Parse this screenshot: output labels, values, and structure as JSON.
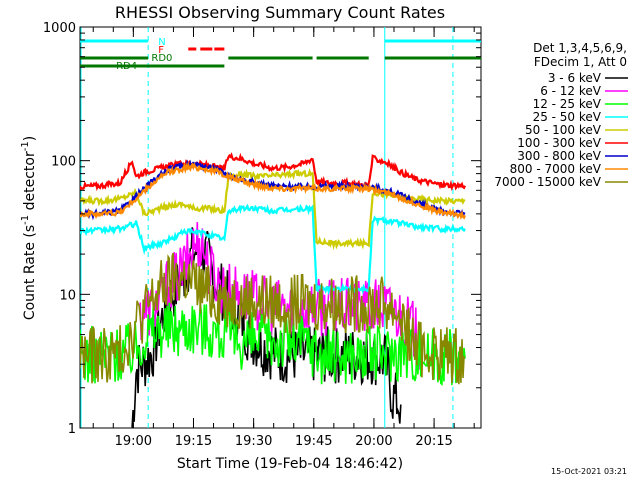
{
  "chart_data": {
    "type": "line",
    "title": "RHESSI Observing Summary Count Rates",
    "xlabel": "Start Time (19-Feb-04 18:46:42)",
    "ylabel_main": "Count Rate (s",
    "ylabel_sup": "-1",
    "ylabel_mid": " detector",
    "ylabel_end": ")",
    "y_scale": "log",
    "ylim": [
      1,
      1000
    ],
    "xlim_minutes": [
      0,
      100
    ],
    "ytick_labels": [
      {
        "label": "1",
        "value": 1
      },
      {
        "label": "10",
        "value": 10
      },
      {
        "label": "100",
        "value": 100
      },
      {
        "label": "1000",
        "value": 1000
      }
    ],
    "xtick_labels": [
      {
        "label": "19:00",
        "minute": 13.3
      },
      {
        "label": "19:15",
        "minute": 28.3
      },
      {
        "label": "19:30",
        "minute": 43.3
      },
      {
        "label": "19:45",
        "minute": 58.3
      },
      {
        "label": "20:00",
        "minute": 73.3
      },
      {
        "label": "20:15",
        "minute": 88.3
      }
    ],
    "legend_header": [
      "Det 1,3,4,5,6,9,",
      "FDecim 1, Att 0"
    ],
    "legend_position": "right",
    "series": [
      {
        "name": "3 - 6 keV",
        "color": "#000000",
        "points": [
          [
            13,
            1
          ],
          [
            14,
            2.7
          ],
          [
            16,
            3.1
          ],
          [
            18,
            3.6
          ],
          [
            20,
            6
          ],
          [
            22,
            9
          ],
          [
            24,
            11
          ],
          [
            26,
            14
          ],
          [
            28,
            20
          ],
          [
            30,
            22
          ],
          [
            32,
            18
          ],
          [
            34,
            12
          ],
          [
            36,
            10
          ],
          [
            38,
            8
          ],
          [
            40,
            7
          ],
          [
            42,
            5
          ],
          [
            44,
            4.5
          ],
          [
            46,
            4
          ],
          [
            50,
            3.5
          ],
          [
            56,
            3.5
          ],
          [
            60,
            3.5
          ],
          [
            66,
            3.5
          ],
          [
            70,
            3.5
          ],
          [
            76,
            3.3
          ],
          [
            78,
            1.7
          ],
          [
            80,
            1.5
          ]
        ]
      },
      {
        "name": "6 - 12 keV",
        "color": "#ff00ff",
        "points": [
          [
            15,
            7
          ],
          [
            18,
            8
          ],
          [
            20,
            9
          ],
          [
            22,
            12
          ],
          [
            24,
            13
          ],
          [
            26,
            16
          ],
          [
            28,
            22
          ],
          [
            30,
            26
          ],
          [
            31,
            22
          ],
          [
            32,
            16
          ],
          [
            34,
            13
          ],
          [
            36,
            11
          ],
          [
            40,
            10
          ],
          [
            44,
            9
          ],
          [
            48,
            8
          ],
          [
            56,
            8
          ],
          [
            58,
            8
          ],
          [
            62,
            8
          ],
          [
            66,
            8
          ],
          [
            70,
            8
          ],
          [
            74,
            8
          ],
          [
            76,
            8
          ],
          [
            80,
            7
          ],
          [
            83,
            5.5
          ],
          [
            85,
            4
          ]
        ]
      },
      {
        "name": "12 - 25 keV",
        "color": "#00ff00",
        "points": [
          [
            0,
            3.5
          ],
          [
            5,
            3.5
          ],
          [
            10,
            3.6
          ],
          [
            14,
            4
          ],
          [
            16,
            5
          ],
          [
            20,
            5.5
          ],
          [
            24,
            5.5
          ],
          [
            28,
            6
          ],
          [
            32,
            5.5
          ],
          [
            36,
            5
          ],
          [
            40,
            4.5
          ],
          [
            44,
            4.5
          ],
          [
            48,
            4.5
          ],
          [
            52,
            4.5
          ],
          [
            56,
            4.5
          ],
          [
            60,
            3.5
          ],
          [
            64,
            3.5
          ],
          [
            70,
            3.5
          ],
          [
            76,
            3.6
          ],
          [
            80,
            3.8
          ],
          [
            86,
            3.5
          ],
          [
            92,
            3.5
          ],
          [
            96,
            3.3
          ]
        ]
      },
      {
        "name": "25 - 50 keV",
        "color": "#00ffff",
        "points": [
          [
            0,
            30
          ],
          [
            5,
            30
          ],
          [
            10,
            31
          ],
          [
            14,
            34
          ],
          [
            16,
            22
          ],
          [
            20,
            24
          ],
          [
            24,
            27
          ],
          [
            26,
            30
          ],
          [
            28,
            29
          ],
          [
            30,
            29
          ],
          [
            32,
            28
          ],
          [
            36,
            26
          ],
          [
            37,
            42
          ],
          [
            40,
            44
          ],
          [
            44,
            44
          ],
          [
            48,
            42
          ],
          [
            52,
            43
          ],
          [
            58,
            44
          ],
          [
            59,
            11
          ],
          [
            64,
            11
          ],
          [
            72,
            11
          ],
          [
            73,
            36
          ],
          [
            76,
            36
          ],
          [
            80,
            34
          ],
          [
            84,
            32
          ],
          [
            90,
            31
          ],
          [
            96,
            31
          ]
        ]
      },
      {
        "name": "50 - 100 keV",
        "color": "#cccc00",
        "points": [
          [
            0,
            50
          ],
          [
            5,
            50
          ],
          [
            10,
            52
          ],
          [
            14,
            58
          ],
          [
            16,
            40
          ],
          [
            20,
            44
          ],
          [
            24,
            47
          ],
          [
            26,
            47
          ],
          [
            28,
            44
          ],
          [
            32,
            44
          ],
          [
            36,
            42
          ],
          [
            37,
            75
          ],
          [
            40,
            80
          ],
          [
            44,
            76
          ],
          [
            50,
            78
          ],
          [
            54,
            80
          ],
          [
            58,
            80
          ],
          [
            59,
            25
          ],
          [
            64,
            24
          ],
          [
            72,
            24
          ],
          [
            73,
            58
          ],
          [
            76,
            56
          ],
          [
            80,
            53
          ],
          [
            84,
            52
          ],
          [
            90,
            50
          ],
          [
            96,
            50
          ]
        ]
      },
      {
        "name": "100 - 300 keV",
        "color": "#ff0000",
        "points": [
          [
            0,
            64
          ],
          [
            5,
            65
          ],
          [
            10,
            68
          ],
          [
            13,
            100
          ],
          [
            14,
            76
          ],
          [
            16,
            82
          ],
          [
            20,
            88
          ],
          [
            24,
            94
          ],
          [
            28,
            96
          ],
          [
            32,
            92
          ],
          [
            36,
            86
          ],
          [
            37,
            108
          ],
          [
            40,
            104
          ],
          [
            44,
            94
          ],
          [
            48,
            88
          ],
          [
            52,
            90
          ],
          [
            56,
            96
          ],
          [
            58,
            104
          ],
          [
            59,
            70
          ],
          [
            62,
            68
          ],
          [
            66,
            68
          ],
          [
            70,
            66
          ],
          [
            72,
            66
          ],
          [
            73,
            104
          ],
          [
            76,
            98
          ],
          [
            80,
            82
          ],
          [
            84,
            72
          ],
          [
            90,
            66
          ],
          [
            96,
            65
          ]
        ]
      },
      {
        "name": "300 - 800 keV",
        "color": "#0000cc",
        "points": [
          [
            0,
            40
          ],
          [
            5,
            40
          ],
          [
            10,
            42
          ],
          [
            14,
            54
          ],
          [
            18,
            70
          ],
          [
            22,
            86
          ],
          [
            26,
            92
          ],
          [
            28,
            94
          ],
          [
            30,
            92
          ],
          [
            34,
            86
          ],
          [
            38,
            76
          ],
          [
            42,
            70
          ],
          [
            46,
            66
          ],
          [
            50,
            64
          ],
          [
            54,
            64
          ],
          [
            58,
            64
          ],
          [
            62,
            64
          ],
          [
            66,
            64
          ],
          [
            70,
            64
          ],
          [
            74,
            62
          ],
          [
            78,
            58
          ],
          [
            82,
            52
          ],
          [
            86,
            46
          ],
          [
            90,
            42
          ],
          [
            96,
            40
          ]
        ]
      },
      {
        "name": "800 - 7000 keV",
        "color": "#ff8800",
        "points": [
          [
            0,
            40
          ],
          [
            5,
            40
          ],
          [
            10,
            41
          ],
          [
            14,
            52
          ],
          [
            18,
            67
          ],
          [
            22,
            82
          ],
          [
            26,
            88
          ],
          [
            28,
            90
          ],
          [
            30,
            88
          ],
          [
            34,
            83
          ],
          [
            38,
            74
          ],
          [
            42,
            68
          ],
          [
            46,
            64
          ],
          [
            50,
            62
          ],
          [
            54,
            62
          ],
          [
            58,
            62
          ],
          [
            62,
            62
          ],
          [
            66,
            62
          ],
          [
            70,
            62
          ],
          [
            74,
            60
          ],
          [
            78,
            56
          ],
          [
            82,
            50
          ],
          [
            86,
            45
          ],
          [
            90,
            41
          ],
          [
            96,
            39
          ]
        ]
      },
      {
        "name": "7000 - 15000 keV",
        "color": "#888800",
        "points": [
          [
            0,
            3.5
          ],
          [
            5,
            3.5
          ],
          [
            10,
            3.6
          ],
          [
            14,
            6
          ],
          [
            18,
            9
          ],
          [
            20,
            11
          ],
          [
            22,
            12
          ],
          [
            24,
            13
          ],
          [
            26,
            13.5
          ],
          [
            28,
            12
          ],
          [
            30,
            11
          ],
          [
            32,
            10
          ],
          [
            34,
            9.5
          ],
          [
            36,
            9.5
          ],
          [
            40,
            9
          ],
          [
            44,
            9
          ],
          [
            48,
            8.5
          ],
          [
            52,
            8.5
          ],
          [
            56,
            8.5
          ],
          [
            60,
            8.5
          ],
          [
            64,
            8.5
          ],
          [
            68,
            8.5
          ],
          [
            72,
            8.5
          ],
          [
            76,
            8.5
          ],
          [
            80,
            7
          ],
          [
            82,
            5
          ],
          [
            84,
            4
          ],
          [
            90,
            3.6
          ],
          [
            96,
            3.4
          ]
        ]
      }
    ],
    "annotations": {
      "N_label": "N",
      "F_label": "F",
      "RD0_label": "RD0",
      "RD4_label": "RD4",
      "night_intervals_minutes": [
        [
          0,
          17
        ],
        [
          76,
          100
        ]
      ],
      "flare_intervals_minutes": [
        [
          27,
          29
        ],
        [
          30,
          33
        ],
        [
          33.5,
          36
        ]
      ],
      "rd0_intervals_minutes": [
        [
          0,
          17
        ],
        [
          37,
          58
        ],
        [
          59,
          72
        ],
        [
          76,
          100
        ]
      ],
      "rd4_intervals_minutes": [
        [
          0,
          36
        ]
      ],
      "dashed_markers_minutes": [
        17,
        93
      ],
      "solid_markers_minutes": [
        0,
        76
      ]
    },
    "footer_timestamp": "15-Oct-2021 03:21"
  }
}
